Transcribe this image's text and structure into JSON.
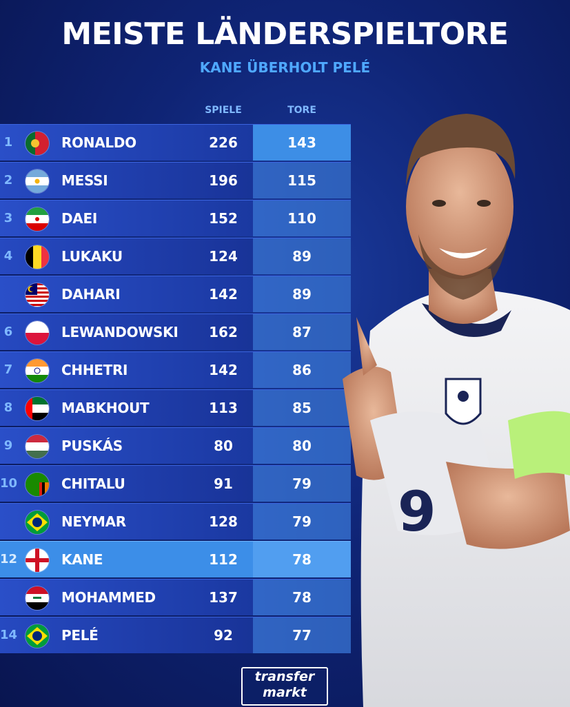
{
  "header": {
    "title": "MEISTE LÄNDERSPIELTORE",
    "subtitle": "KANE ÜBERHOLT PELÉ"
  },
  "columns": {
    "games": "SPIELE",
    "goals": "TORE"
  },
  "rows": [
    {
      "rank": "1",
      "name": "RONALDO",
      "games": "226",
      "goals": "143",
      "flag": "portugal"
    },
    {
      "rank": "2",
      "name": "MESSI",
      "games": "196",
      "goals": "115",
      "flag": "argentina"
    },
    {
      "rank": "3",
      "name": "DAEI",
      "games": "152",
      "goals": "110",
      "flag": "iran"
    },
    {
      "rank": "4",
      "name": "LUKAKU",
      "games": "124",
      "goals": "89",
      "flag": "belgium"
    },
    {
      "rank": "",
      "name": "DAHARI",
      "games": "142",
      "goals": "89",
      "flag": "malaysia"
    },
    {
      "rank": "6",
      "name": "LEWANDOWSKI",
      "games": "162",
      "goals": "87",
      "flag": "poland"
    },
    {
      "rank": "7",
      "name": "CHHETRI",
      "games": "142",
      "goals": "86",
      "flag": "india"
    },
    {
      "rank": "8",
      "name": "MABKHOUT",
      "games": "113",
      "goals": "85",
      "flag": "uae"
    },
    {
      "rank": "9",
      "name": "PUSKÁS",
      "games": "80",
      "goals": "80",
      "flag": "hungary"
    },
    {
      "rank": "10",
      "name": "CHITALU",
      "games": "91",
      "goals": "79",
      "flag": "zambia"
    },
    {
      "rank": "",
      "name": "NEYMAR",
      "games": "128",
      "goals": "79",
      "flag": "brazil"
    },
    {
      "rank": "12",
      "name": "KANE",
      "games": "112",
      "goals": "78",
      "flag": "england",
      "highlight": true
    },
    {
      "rank": "",
      "name": "MOHAMMED",
      "games": "137",
      "goals": "78",
      "flag": "iraq"
    },
    {
      "rank": "14",
      "name": "PELÉ",
      "games": "92",
      "goals": "77",
      "flag": "brazil"
    }
  ],
  "logo": {
    "line1": "transfer",
    "line2": "markt"
  },
  "player_photo": {
    "shirt_number": "9"
  }
}
